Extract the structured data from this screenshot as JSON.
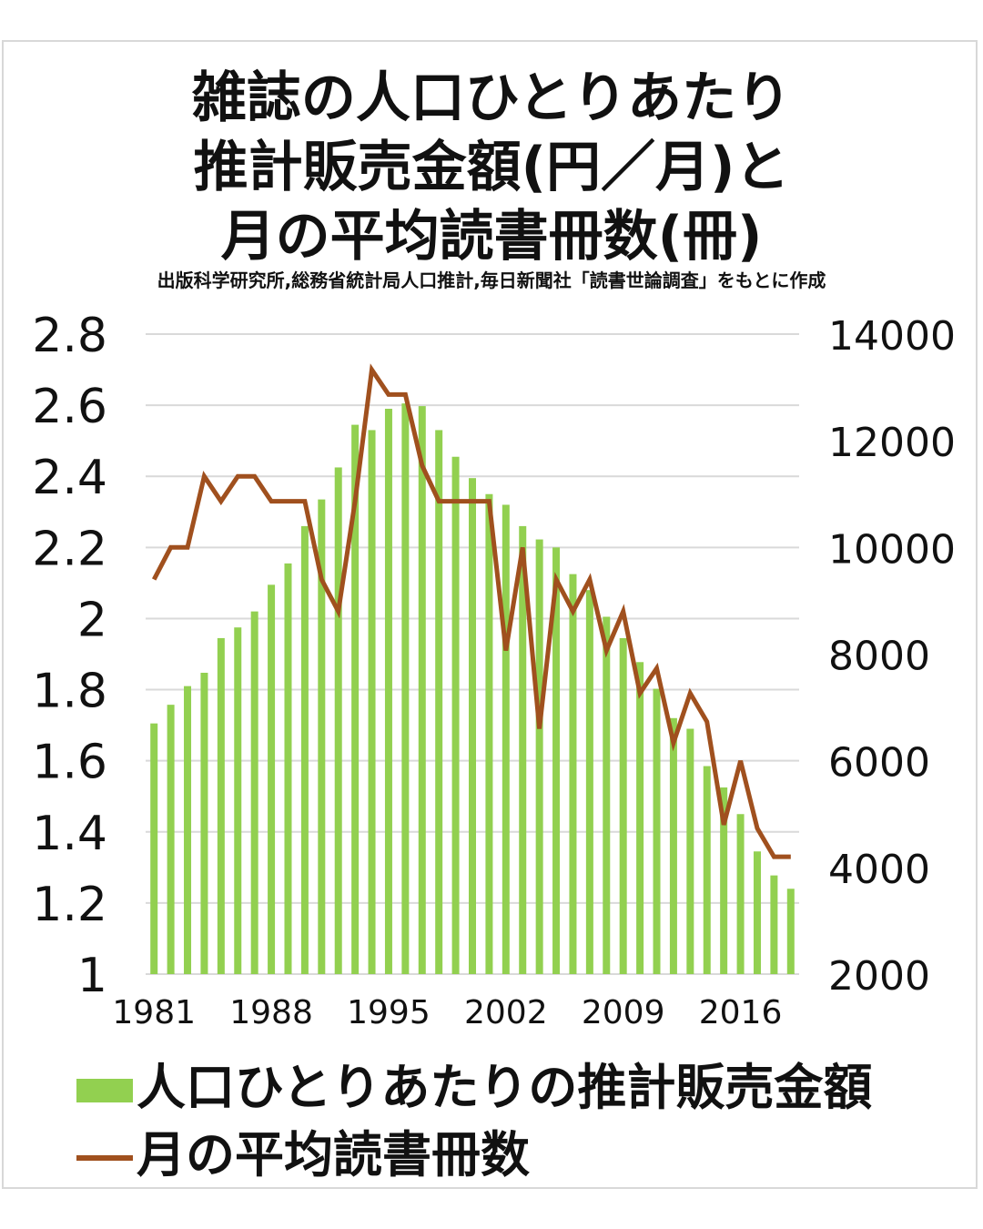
{
  "title_lines": [
    "雑誌の人口ひとりあたり",
    "推計販売金額(円／月)と",
    "月の平均読書冊数(冊)"
  ],
  "source": "出版科学研究所,総務省統計局人口推計,毎日新聞社「読書世論調査」をもとに作成",
  "legend": {
    "bar_label": "人口ひとりあたりの推計販売金額",
    "line_label": "月の平均読書冊数"
  },
  "colors": {
    "bar": "#92d050",
    "line": "#a0501e",
    "grid": "#d9d9d9"
  },
  "chart_data": {
    "type": "bar+line",
    "x": [
      1981,
      1982,
      1983,
      1984,
      1985,
      1986,
      1987,
      1988,
      1989,
      1990,
      1991,
      1992,
      1993,
      1994,
      1995,
      1996,
      1997,
      1998,
      1999,
      2000,
      2001,
      2002,
      2003,
      2004,
      2005,
      2006,
      2007,
      2008,
      2009,
      2010,
      2011,
      2012,
      2013,
      2014,
      2015,
      2016,
      2017,
      2018,
      2019
    ],
    "x_tick_labels": [
      "1981",
      "1988",
      "1995",
      "2002",
      "2009",
      "2016"
    ],
    "x_tick_values": [
      1981,
      1988,
      1995,
      2002,
      2009,
      2016
    ],
    "left_axis": {
      "ylim": [
        1,
        2.8
      ],
      "ticks": [
        "1",
        "1.2",
        "1.4",
        "1.6",
        "1.8",
        "2",
        "2.2",
        "2.4",
        "2.6",
        "2.8"
      ]
    },
    "right_axis": {
      "ylim": [
        2000,
        14000
      ],
      "ticks": [
        "2000",
        "4000",
        "6000",
        "8000",
        "10000",
        "12000",
        "14000"
      ]
    },
    "grid": true,
    "legend_position": "bottom",
    "series": [
      {
        "name": "人口ひとりあたりの推計販売金額",
        "type": "bar",
        "axis": "right",
        "values": [
          6700,
          7050,
          7400,
          7650,
          8300,
          8500,
          8800,
          9300,
          9700,
          10400,
          10900,
          11500,
          12300,
          12200,
          12600,
          12700,
          12650,
          12200,
          11700,
          11300,
          11000,
          10800,
          10400,
          10150,
          10000,
          9500,
          9200,
          8700,
          8300,
          7850,
          7350,
          6800,
          6600,
          5900,
          5500,
          5000,
          4300,
          3850,
          3600
        ]
      },
      {
        "name": "月の平均読書冊数",
        "type": "line",
        "axis": "left",
        "values": [
          2.11,
          2.2,
          2.2,
          2.4,
          2.33,
          2.4,
          2.4,
          2.33,
          2.33,
          2.33,
          2.11,
          2.02,
          2.33,
          2.7,
          2.63,
          2.63,
          2.43,
          2.33,
          2.33,
          2.33,
          2.33,
          1.91,
          2.2,
          1.69,
          2.11,
          2.02,
          2.11,
          1.91,
          2.02,
          1.79,
          1.86,
          1.65,
          1.79,
          1.71,
          1.42,
          1.6,
          1.41,
          1.33,
          1.33
        ]
      }
    ]
  }
}
